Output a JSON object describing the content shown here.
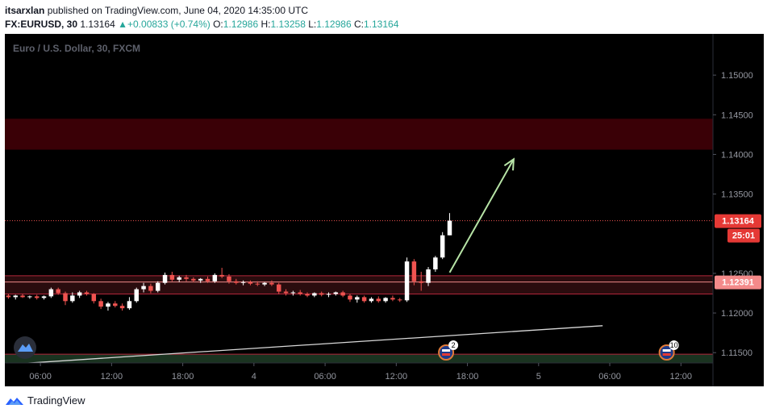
{
  "header": {
    "author": "itsarxlan",
    "published_text": "published on TradingView.com, June 04, 2020 14:35:00 UTC",
    "symbol": "FX:EURUSD, 30",
    "last": "1.13164",
    "change": "+0.00833 (+0.74%)",
    "o_label": "O:",
    "o_value": "1.12986",
    "h_label": "H:",
    "h_value": "1.13258",
    "l_label": "L:",
    "l_value": "1.12986",
    "c_label": "C:",
    "c_value": "1.13164"
  },
  "footer": {
    "brand": "TradingView"
  },
  "colors": {
    "up": "#ffffff",
    "down": "#ef5350",
    "background": "#000000",
    "price_line": "#ef5350",
    "zone_red": "#3a0006",
    "zone_dark_red": "#2a0c0e",
    "zone_green": "#1a3320",
    "arrow": "#b7e4a6",
    "axis_text": "#9598a1"
  },
  "chart_data": {
    "type": "candlestick",
    "title": "Euro / U.S. Dollar, 30, FXCM",
    "ylim": [
      1.1137,
      1.1552
    ],
    "y_ticks": [
      1.15,
      1.145,
      1.14,
      1.135,
      1.125,
      1.12,
      1.115
    ],
    "y_tick_labels": [
      "1.15000",
      "1.14500",
      "1.14000",
      "1.13500",
      "1.12500",
      "1.12000",
      "1.11500"
    ],
    "x_ticks": [
      {
        "label": "06:00",
        "bar": 4.5
      },
      {
        "label": "12:00",
        "bar": 14.5
      },
      {
        "label": "18:00",
        "bar": 24.5
      },
      {
        "label": "4",
        "bar": 34.5
      },
      {
        "label": "06:00",
        "bar": 44.5
      },
      {
        "label": "12:00",
        "bar": 54.5
      },
      {
        "label": "18:00",
        "bar": 64.5
      },
      {
        "label": "5",
        "bar": 74.5
      },
      {
        "label": "06:00",
        "bar": 84.5
      },
      {
        "label": "12:00",
        "bar": 94.5
      }
    ],
    "x_bar_range": [
      -0.5,
      99
    ],
    "candles": [
      {
        "o": 1.1222,
        "h": 1.1224,
        "l": 1.1218,
        "c": 1.122
      },
      {
        "o": 1.122,
        "h": 1.1223,
        "l": 1.1217,
        "c": 1.1222
      },
      {
        "o": 1.1222,
        "h": 1.1224,
        "l": 1.1219,
        "c": 1.122
      },
      {
        "o": 1.122,
        "h": 1.1222,
        "l": 1.1218,
        "c": 1.1221
      },
      {
        "o": 1.1221,
        "h": 1.1223,
        "l": 1.1217,
        "c": 1.1219
      },
      {
        "o": 1.1219,
        "h": 1.1222,
        "l": 1.1217,
        "c": 1.1221
      },
      {
        "o": 1.1221,
        "h": 1.1232,
        "l": 1.1219,
        "c": 1.123
      },
      {
        "o": 1.123,
        "h": 1.1232,
        "l": 1.1223,
        "c": 1.1225
      },
      {
        "o": 1.1225,
        "h": 1.1227,
        "l": 1.121,
        "c": 1.1215
      },
      {
        "o": 1.1215,
        "h": 1.1226,
        "l": 1.1213,
        "c": 1.1222
      },
      {
        "o": 1.1222,
        "h": 1.1228,
        "l": 1.1219,
        "c": 1.1226
      },
      {
        "o": 1.1226,
        "h": 1.1228,
        "l": 1.1222,
        "c": 1.1224
      },
      {
        "o": 1.1224,
        "h": 1.1225,
        "l": 1.1212,
        "c": 1.1215
      },
      {
        "o": 1.1215,
        "h": 1.1218,
        "l": 1.1205,
        "c": 1.1208
      },
      {
        "o": 1.1208,
        "h": 1.1214,
        "l": 1.1203,
        "c": 1.1212
      },
      {
        "o": 1.1212,
        "h": 1.1215,
        "l": 1.1207,
        "c": 1.1209
      },
      {
        "o": 1.1209,
        "h": 1.1212,
        "l": 1.1203,
        "c": 1.1206
      },
      {
        "o": 1.1206,
        "h": 1.122,
        "l": 1.1204,
        "c": 1.1215
      },
      {
        "o": 1.1215,
        "h": 1.1232,
        "l": 1.1213,
        "c": 1.123
      },
      {
        "o": 1.123,
        "h": 1.1238,
        "l": 1.1226,
        "c": 1.1234
      },
      {
        "o": 1.1234,
        "h": 1.1237,
        "l": 1.1225,
        "c": 1.1228
      },
      {
        "o": 1.1228,
        "h": 1.124,
        "l": 1.1226,
        "c": 1.1238
      },
      {
        "o": 1.1238,
        "h": 1.1251,
        "l": 1.1236,
        "c": 1.1248
      },
      {
        "o": 1.1248,
        "h": 1.1252,
        "l": 1.124,
        "c": 1.1242
      },
      {
        "o": 1.1242,
        "h": 1.1247,
        "l": 1.1239,
        "c": 1.1245
      },
      {
        "o": 1.1245,
        "h": 1.1248,
        "l": 1.124,
        "c": 1.1243
      },
      {
        "o": 1.1243,
        "h": 1.1245,
        "l": 1.1239,
        "c": 1.1241
      },
      {
        "o": 1.1241,
        "h": 1.1244,
        "l": 1.1238,
        "c": 1.1243
      },
      {
        "o": 1.1243,
        "h": 1.1246,
        "l": 1.1238,
        "c": 1.124
      },
      {
        "o": 1.124,
        "h": 1.125,
        "l": 1.1238,
        "c": 1.1248
      },
      {
        "o": 1.1248,
        "h": 1.1257,
        "l": 1.1244,
        "c": 1.1246
      },
      {
        "o": 1.1246,
        "h": 1.1249,
        "l": 1.1237,
        "c": 1.124
      },
      {
        "o": 1.124,
        "h": 1.1243,
        "l": 1.1236,
        "c": 1.1238
      },
      {
        "o": 1.1238,
        "h": 1.1241,
        "l": 1.1235,
        "c": 1.1239
      },
      {
        "o": 1.1239,
        "h": 1.1241,
        "l": 1.1235,
        "c": 1.1237
      },
      {
        "o": 1.1237,
        "h": 1.124,
        "l": 1.1234,
        "c": 1.1236
      },
      {
        "o": 1.1236,
        "h": 1.1239,
        "l": 1.1234,
        "c": 1.1238
      },
      {
        "o": 1.1238,
        "h": 1.1241,
        "l": 1.1234,
        "c": 1.1236
      },
      {
        "o": 1.1236,
        "h": 1.1238,
        "l": 1.1224,
        "c": 1.1227
      },
      {
        "o": 1.1227,
        "h": 1.123,
        "l": 1.1222,
        "c": 1.1225
      },
      {
        "o": 1.1225,
        "h": 1.1228,
        "l": 1.1222,
        "c": 1.1226
      },
      {
        "o": 1.1226,
        "h": 1.1229,
        "l": 1.1222,
        "c": 1.1224
      },
      {
        "o": 1.1224,
        "h": 1.1226,
        "l": 1.122,
        "c": 1.1222
      },
      {
        "o": 1.1222,
        "h": 1.1226,
        "l": 1.122,
        "c": 1.1225
      },
      {
        "o": 1.1225,
        "h": 1.1227,
        "l": 1.1221,
        "c": 1.1223
      },
      {
        "o": 1.1223,
        "h": 1.1226,
        "l": 1.122,
        "c": 1.1224
      },
      {
        "o": 1.1224,
        "h": 1.1227,
        "l": 1.1222,
        "c": 1.1226
      },
      {
        "o": 1.1226,
        "h": 1.1228,
        "l": 1.122,
        "c": 1.1222
      },
      {
        "o": 1.1222,
        "h": 1.1224,
        "l": 1.1214,
        "c": 1.1217
      },
      {
        "o": 1.1217,
        "h": 1.1222,
        "l": 1.1213,
        "c": 1.122
      },
      {
        "o": 1.122,
        "h": 1.1222,
        "l": 1.1213,
        "c": 1.1215
      },
      {
        "o": 1.1215,
        "h": 1.122,
        "l": 1.1213,
        "c": 1.1218
      },
      {
        "o": 1.1218,
        "h": 1.1221,
        "l": 1.1213,
        "c": 1.1215
      },
      {
        "o": 1.1215,
        "h": 1.122,
        "l": 1.1213,
        "c": 1.1219
      },
      {
        "o": 1.1219,
        "h": 1.1222,
        "l": 1.1215,
        "c": 1.1217
      },
      {
        "o": 1.1217,
        "h": 1.1219,
        "l": 1.1214,
        "c": 1.1216
      },
      {
        "o": 1.1216,
        "h": 1.127,
        "l": 1.1214,
        "c": 1.1265
      },
      {
        "o": 1.1265,
        "h": 1.1268,
        "l": 1.1235,
        "c": 1.124
      },
      {
        "o": 1.124,
        "h": 1.1252,
        "l": 1.1228,
        "c": 1.1238
      },
      {
        "o": 1.1238,
        "h": 1.1258,
        "l": 1.1234,
        "c": 1.1255
      },
      {
        "o": 1.1255,
        "h": 1.1272,
        "l": 1.1252,
        "c": 1.127
      },
      {
        "o": 1.127,
        "h": 1.1302,
        "l": 1.1268,
        "c": 1.1298
      },
      {
        "o": 1.1298,
        "h": 1.1326,
        "l": 1.1298,
        "c": 1.13164
      }
    ],
    "zones": [
      {
        "name": "resistance-zone",
        "from": 1.1406,
        "to": 1.1445
      },
      {
        "name": "support-zone",
        "from": 1.1224,
        "to": 1.1247
      },
      {
        "name": "demand-zone",
        "from": 1.1133,
        "to": 1.1148
      }
    ],
    "lines": [
      {
        "name": "current-price-line",
        "price": 1.13164
      },
      {
        "name": "level-line",
        "price": 1.12391
      }
    ],
    "trendline": {
      "from": {
        "bar": -0.5,
        "price": 1.1135
      },
      "to": {
        "bar": 83.5,
        "price": 1.1184
      }
    },
    "arrow": {
      "from": {
        "bar": 62,
        "price": 1.1251
      },
      "to": {
        "bar": 71,
        "price": 1.1394
      }
    },
    "price_labels": [
      {
        "name": "last-price-label",
        "text": "1.13164",
        "price": 1.13164
      },
      {
        "name": "countdown-label",
        "text": "25:01"
      },
      {
        "name": "level-price-label",
        "text": "1.12391",
        "price": 1.12391
      }
    ],
    "events": [
      {
        "name": "event-marker-1",
        "bar": 61.5,
        "count": "2"
      },
      {
        "name": "event-marker-2",
        "bar": 92.5,
        "count": "10"
      }
    ]
  }
}
